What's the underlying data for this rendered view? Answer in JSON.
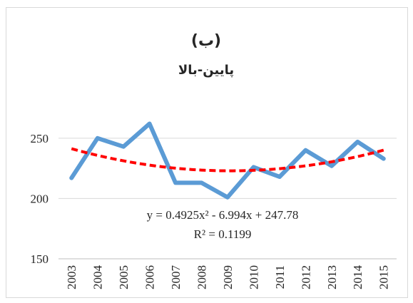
{
  "chart_data": {
    "type": "line",
    "title": "(ب)",
    "subtitle": "پايين-بالا",
    "categories": [
      "2003",
      "2004",
      "2005",
      "2006",
      "2007",
      "2008",
      "2009",
      "2010",
      "2011",
      "2012",
      "2013",
      "2014",
      "2015"
    ],
    "series": [
      {
        "values": [
          217,
          250,
          243,
          262,
          213,
          213,
          201,
          226,
          218,
          240,
          227,
          247,
          233
        ],
        "color": "#5b9bd5"
      }
    ],
    "trendline": {
      "type": "polynomial",
      "order": 2,
      "coefficients": [
        0.4925,
        -6.994,
        247.78
      ],
      "color": "#ff0000",
      "style": "dashed"
    },
    "equation": "y = 0.4925x² - 6.994x + 247.78",
    "r_squared": "R² = 0.1199",
    "yticks": [
      "150",
      "200",
      "250"
    ],
    "ylim": [
      150,
      270
    ],
    "grid": true,
    "xlabel": "",
    "ylabel": ""
  }
}
